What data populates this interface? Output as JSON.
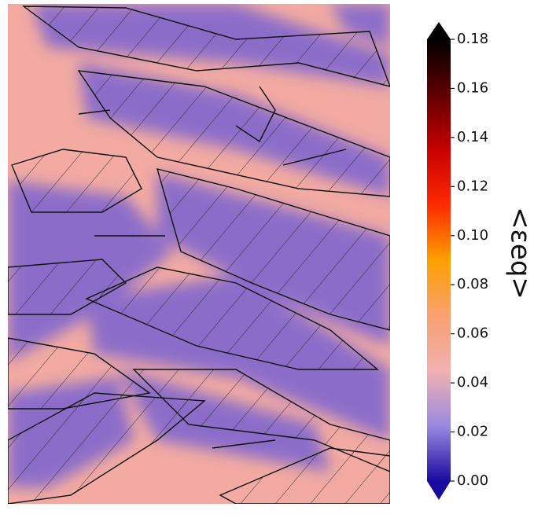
{
  "chart_data": {
    "type": "heatmap",
    "colorbar_label": "<εeq>",
    "clim": [
      0,
      0.18
    ],
    "cticks": [
      {
        "value": 0,
        "label": "0.00"
      },
      {
        "value": 0.02,
        "label": "0.02"
      },
      {
        "value": 0.04,
        "label": "0.04"
      },
      {
        "value": 0.06,
        "label": "0.06"
      },
      {
        "value": 0.08,
        "label": "0.08"
      },
      {
        "value": 0.1,
        "label": "0.10"
      },
      {
        "value": 0.12,
        "label": "0.12"
      },
      {
        "value": 0.14,
        "label": "0.14"
      },
      {
        "value": 0.16,
        "label": "0.16"
      },
      {
        "value": 0.18,
        "label": "0.18"
      }
    ],
    "colormap": [
      "#1a0aa0",
      "#9a8ae0",
      "#f2b0b0",
      "#f8a070",
      "#ffa000",
      "#ff2a00",
      "#c80000",
      "#600000",
      "#000000"
    ]
  }
}
